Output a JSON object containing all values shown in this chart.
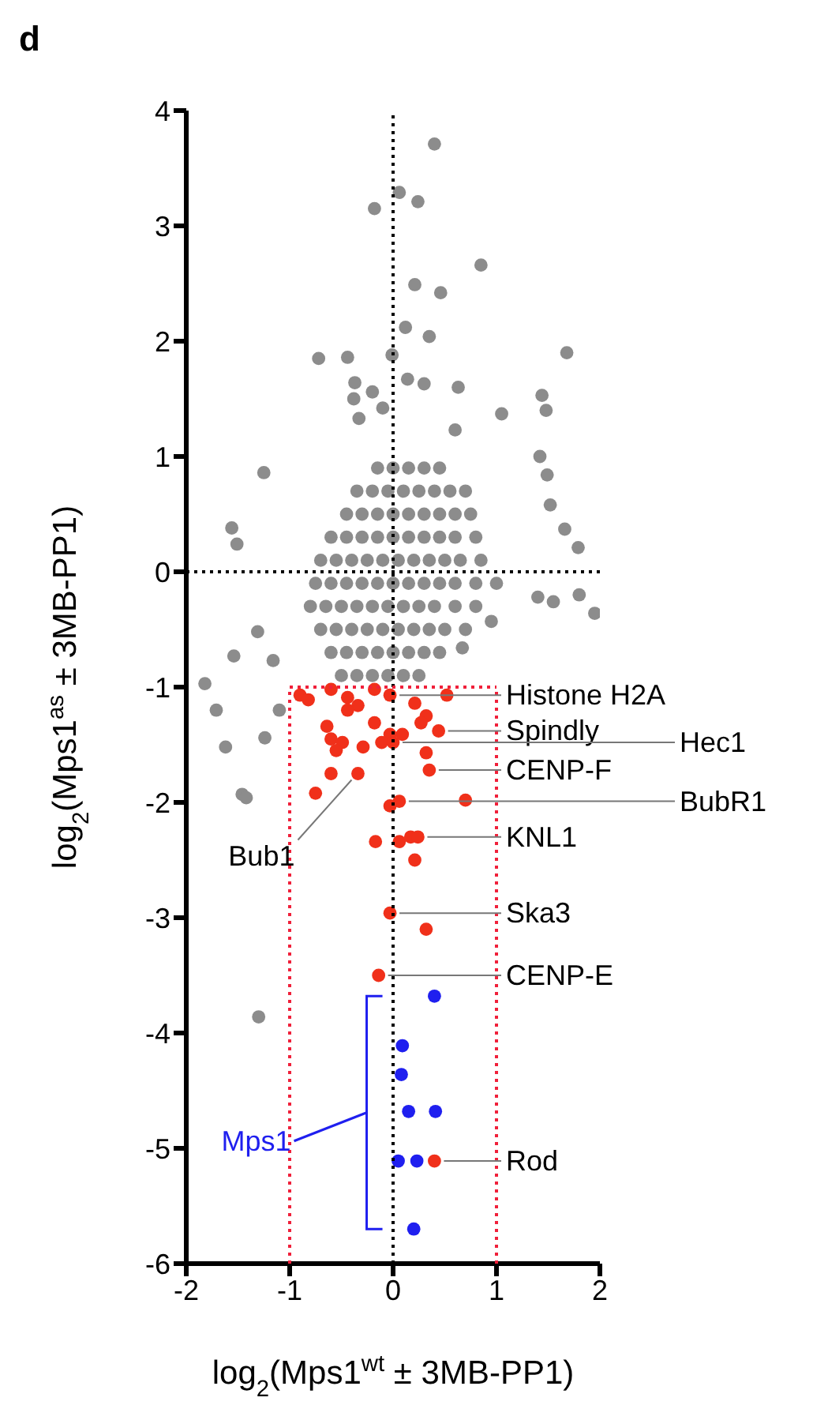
{
  "chart_data": {
    "type": "scatter",
    "title": "d",
    "xlabel": "log$_{2}$(Mps1$^{wt}$ ± 3MB-PP1)",
    "ylabel": "log$_{2}$(Mps1$^{as}$ ± 3MB-PP1)",
    "xlim": [
      -2,
      2
    ],
    "ylim": [
      -6,
      4
    ],
    "xticks": [
      -2,
      -1,
      0,
      1,
      2
    ],
    "yticks": [
      -6,
      -5,
      -4,
      -3,
      -2,
      -1,
      0,
      1,
      2,
      3,
      4
    ],
    "marker": "circle",
    "ref_lines": [
      {
        "axis": "x",
        "value": 0,
        "color": "#000000",
        "line_style": "dotted"
      },
      {
        "axis": "y",
        "value": 0,
        "color": "#000000",
        "line_style": "dotted"
      },
      {
        "axis": "x",
        "value": -1,
        "color": "#f0203a",
        "line_style": "dotted"
      },
      {
        "axis": "x",
        "value": 1,
        "color": "#f0203a",
        "line_style": "dotted"
      },
      {
        "axis": "y",
        "value": -1,
        "color": "#f0203a",
        "line_style": "dotted"
      }
    ],
    "series": [
      {
        "color": "#8c8c8c",
        "x": [
          0.4,
          0.06,
          -0.18,
          0.24,
          0.85,
          0.21,
          0.46,
          1.68,
          -0.72,
          -0.44,
          -0.01,
          0.12,
          0.35,
          -0.37,
          -0.2,
          -0.38,
          0.14,
          0.3,
          0.63,
          1.44,
          1.48,
          1.05,
          -0.33,
          -0.1,
          0.6,
          -1.25,
          -1.56,
          -1.51,
          1.66,
          1.79,
          1.42,
          1.49,
          1.52,
          -1.82,
          -1.62,
          -1.46,
          -1.42,
          -1.24,
          -1.31,
          -1.54,
          -1.16,
          1.95,
          1.55,
          1.8,
          1.4,
          0.67,
          0.95,
          -1.71,
          -1.1,
          -1.3,
          -0.15,
          0,
          0.15,
          0.3,
          0.45,
          -0.35,
          -0.2,
          -0.05,
          0.1,
          0.25,
          0.4,
          0.55,
          0.7,
          -0.45,
          -0.3,
          -0.15,
          0,
          0.15,
          0.3,
          0.45,
          0.6,
          0.75,
          -0.6,
          -0.45,
          -0.3,
          -0.15,
          0,
          0.15,
          0.3,
          0.45,
          0.6,
          0.8,
          -0.7,
          -0.55,
          -0.4,
          -0.25,
          -0.1,
          0.05,
          0.2,
          0.35,
          0.5,
          0.65,
          0.85,
          -0.75,
          -0.6,
          -0.45,
          -0.3,
          -0.15,
          0,
          0.15,
          0.3,
          0.45,
          0.6,
          0.8,
          1.0,
          -0.8,
          -0.65,
          -0.5,
          -0.35,
          -0.2,
          -0.05,
          0.1,
          0.25,
          0.4,
          0.6,
          0.8,
          -0.7,
          -0.55,
          -0.4,
          -0.25,
          -0.1,
          0.05,
          0.2,
          0.35,
          0.5,
          0.7,
          -0.6,
          -0.45,
          -0.3,
          -0.15,
          0,
          0.15,
          0.3,
          0.45,
          -0.5,
          -0.35,
          -0.2,
          -0.05,
          0.1,
          0.25
        ],
        "values": [
          3.71,
          3.29,
          3.15,
          3.21,
          2.66,
          2.49,
          2.42,
          1.9,
          1.85,
          1.86,
          1.88,
          2.12,
          2.04,
          1.64,
          1.56,
          1.5,
          1.67,
          1.63,
          1.6,
          1.53,
          1.4,
          1.37,
          1.33,
          1.42,
          1.23,
          0.86,
          0.38,
          0.24,
          0.37,
          0.21,
          1.0,
          0.84,
          0.58,
          -0.97,
          -1.52,
          -1.93,
          -1.96,
          -1.44,
          -0.52,
          -0.73,
          -0.77,
          -0.36,
          -0.26,
          -0.2,
          -0.22,
          -0.66,
          -0.43,
          -1.2,
          -1.2,
          -3.86,
          0.9,
          0.9,
          0.9,
          0.9,
          0.9,
          0.7,
          0.7,
          0.7,
          0.7,
          0.7,
          0.7,
          0.7,
          0.7,
          0.5,
          0.5,
          0.5,
          0.5,
          0.5,
          0.5,
          0.5,
          0.5,
          0.5,
          0.3,
          0.3,
          0.3,
          0.3,
          0.3,
          0.3,
          0.3,
          0.3,
          0.3,
          0.3,
          0.1,
          0.1,
          0.1,
          0.1,
          0.1,
          0.1,
          0.1,
          0.1,
          0.1,
          0.1,
          0.1,
          -0.1,
          -0.1,
          -0.1,
          -0.1,
          -0.1,
          -0.1,
          -0.1,
          -0.1,
          -0.1,
          -0.1,
          -0.1,
          -0.1,
          -0.3,
          -0.3,
          -0.3,
          -0.3,
          -0.3,
          -0.3,
          -0.3,
          -0.3,
          -0.3,
          -0.3,
          -0.3,
          -0.5,
          -0.5,
          -0.5,
          -0.5,
          -0.5,
          -0.5,
          -0.5,
          -0.5,
          -0.5,
          -0.5,
          -0.7,
          -0.7,
          -0.7,
          -0.7,
          -0.7,
          -0.7,
          -0.7,
          -0.7,
          -0.9,
          -0.9,
          -0.9,
          -0.9,
          -0.9,
          -0.9
        ]
      },
      {
        "color": "#f0301a",
        "x": [
          -0.9,
          -0.82,
          -0.6,
          -0.44,
          -0.34,
          -0.18,
          -0.03,
          -0.44,
          0.21,
          0.52,
          0.32,
          0.44,
          0.27,
          -0.64,
          -0.18,
          -0.03,
          0.09,
          -0.6,
          -0.49,
          -0.29,
          -0.11,
          -0.55,
          0.32,
          -0.6,
          -0.34,
          -0.75,
          0.35,
          0.06,
          -0.03,
          0.7,
          -0.17,
          0.06,
          0.17,
          0.24,
          0.21,
          -0.03,
          0.32,
          -0.14,
          0.0,
          0.4
        ],
        "values": [
          -1.07,
          -1.11,
          -1.02,
          -1.09,
          -1.16,
          -1.02,
          -1.07,
          -1.2,
          -1.14,
          -1.07,
          -1.25,
          -1.38,
          -1.31,
          -1.34,
          -1.31,
          -1.41,
          -1.41,
          -1.45,
          -1.48,
          -1.52,
          -1.48,
          -1.55,
          -1.57,
          -1.75,
          -1.75,
          -1.92,
          -1.72,
          -1.99,
          -2.03,
          -1.98,
          -2.34,
          -2.34,
          -2.3,
          -2.3,
          -2.5,
          -2.96,
          -3.1,
          -3.5,
          -1.48,
          -5.11
        ]
      },
      {
        "name": "Mps1",
        "color": "#1f1fef",
        "x": [
          0.4,
          0.09,
          0.08,
          0.15,
          0.41,
          0.05,
          0.23,
          0.2
        ],
        "values": [
          -3.68,
          -4.11,
          -4.36,
          -4.68,
          -4.68,
          -5.11,
          -5.11,
          -5.7
        ]
      }
    ],
    "annotations": [
      {
        "text": "Histone H2A",
        "x": -0.03,
        "y": -1.07
      },
      {
        "text": "Spindly",
        "x": 0.44,
        "y": -1.38
      },
      {
        "text": "Hec1",
        "x": 0.0,
        "y": -1.48
      },
      {
        "text": "CENP-F",
        "x": 0.35,
        "y": -1.72
      },
      {
        "text": "BubR1",
        "x": 0.06,
        "y": -1.99
      },
      {
        "text": "Bub1",
        "x": -0.34,
        "y": -1.75
      },
      {
        "text": "KNL1",
        "x": 0.24,
        "y": -2.3
      },
      {
        "text": "Ska3",
        "x": -0.03,
        "y": -2.96
      },
      {
        "text": "CENP-E",
        "x": -0.14,
        "y": -3.5
      },
      {
        "text": "Rod",
        "x": 0.4,
        "y": -5.11
      }
    ]
  }
}
